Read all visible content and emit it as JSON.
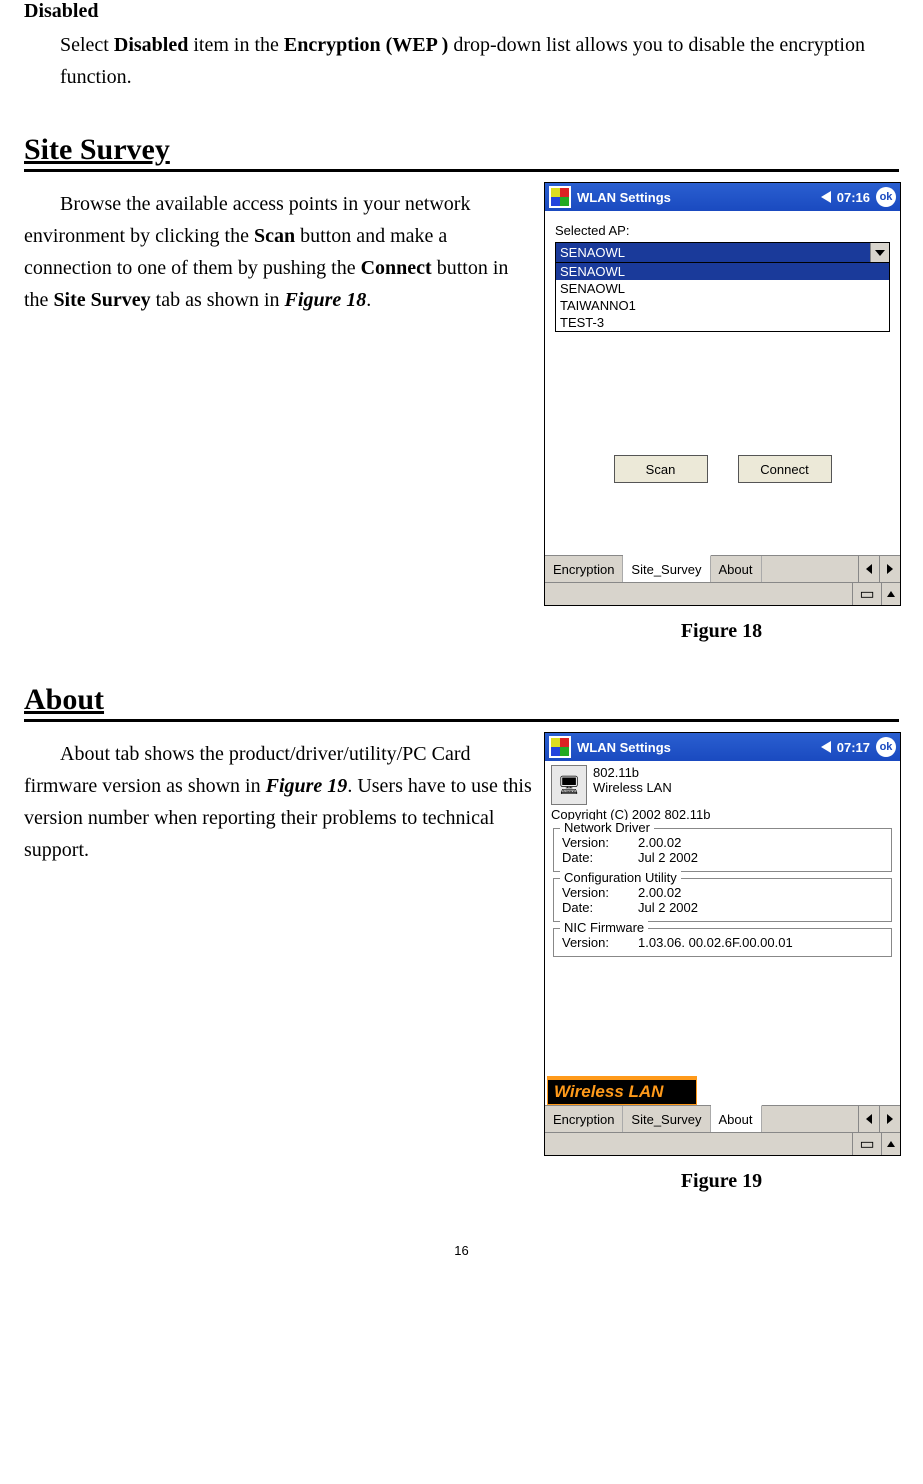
{
  "disabled": {
    "heading": "Disabled",
    "line1a": "Select ",
    "line1b": "Disabled",
    "line1c": " item in the ",
    "line1d": "Encryption (WEP )",
    "line1e": " drop-down list allows you to disable the encryption function."
  },
  "site_survey": {
    "heading": "Site Survey",
    "p1": "Browse the available access points in your network environment by clicking the ",
    "p1b": "Scan",
    "p1c": " button and make a connection to one of them by pushing the ",
    "p1d": "Connect",
    "p1e": " button in the ",
    "p1f": "Site Survey",
    "p1g": " tab as shown in ",
    "p1h": "Figure 18",
    "p1i": ".",
    "caption": "Figure 18"
  },
  "about": {
    "heading": "About",
    "p1": "About tab shows the product/driver/utility/PC Card firmware version as shown in ",
    "p1b": "Figure 19",
    "p1c": ". Users have to use this version number when reporting their problems to technical support.",
    "caption": "Figure 19"
  },
  "fig18": {
    "title": "WLAN Settings",
    "time": "07:16",
    "ok": "ok",
    "label": "Selected AP:",
    "combo_value": "SENAOWL",
    "list": [
      "SENAOWL",
      "SENAOWL",
      "TAIWANNO1",
      "TEST-3"
    ],
    "btn_scan": "Scan",
    "btn_connect": "Connect",
    "tabs": [
      "Encryption",
      "Site_Survey",
      "About"
    ],
    "active_tab_index": 1
  },
  "fig19": {
    "title": "WLAN Settings",
    "time": "07:17",
    "ok": "ok",
    "top_line1": "802.11b",
    "top_line2": "Wireless LAN",
    "copyright": "Copyright (C) 2002  802.11b",
    "groups": [
      {
        "title": "Network Driver",
        "rows": [
          {
            "k": "Version:",
            "v": "2.00.02"
          },
          {
            "k": "Date:",
            "v": "Jul  2 2002"
          }
        ]
      },
      {
        "title": "Configuration Utility",
        "rows": [
          {
            "k": "Version:",
            "v": "2.00.02"
          },
          {
            "k": "Date:",
            "v": "Jul  2 2002"
          }
        ]
      },
      {
        "title": "NIC Firmware",
        "rows": [
          {
            "k": "Version:",
            "v": "1.03.06.  00.02.6F.00.00.01"
          }
        ]
      }
    ],
    "logo": "Wireless LAN",
    "tabs": [
      "Encryption",
      "Site_Survey",
      "About"
    ],
    "active_tab_index": 2
  },
  "page_number": "16",
  "colors": {
    "titlebar_start": "#2a5fd0",
    "titlebar_end": "#1a4ac0",
    "selection": "#1a3a9a",
    "panel": "#d8d4cc",
    "button": "#ece9d8",
    "logo_bg": "#000000",
    "logo_fg": "#ff9a1a"
  }
}
